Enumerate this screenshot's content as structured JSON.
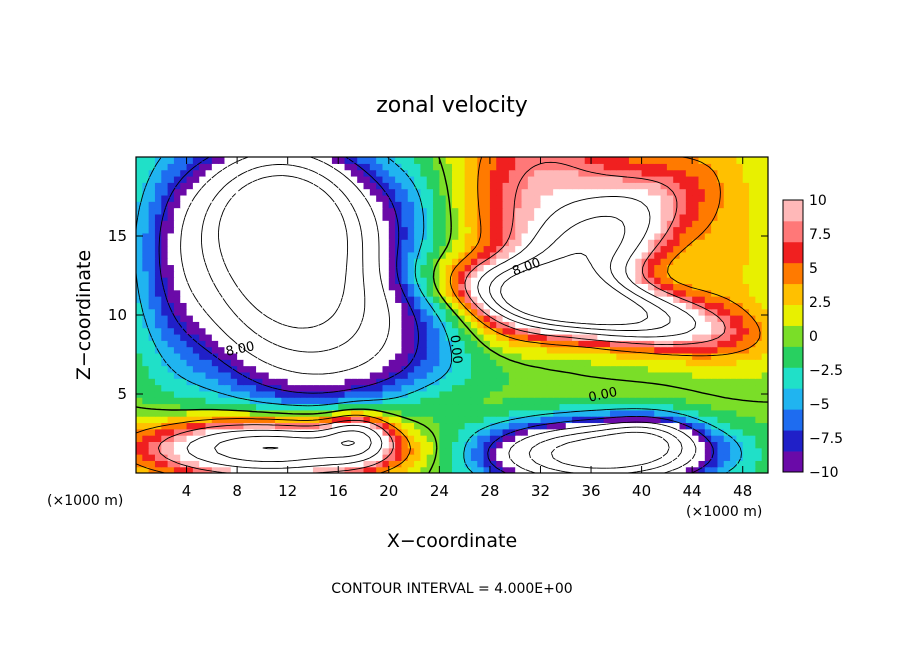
{
  "chart_data": {
    "type": "heatmap",
    "title": "zonal velocity",
    "xlabel": "X−coordinate",
    "ylabel": "Z−coordinate",
    "x_unit_left": "(×1000 m)",
    "x_unit_right": "(×1000 m)",
    "footer": "CONTOUR INTERVAL = 4.000E+00",
    "xlim": [
      0,
      50
    ],
    "ylim": [
      0,
      20
    ],
    "x_ticks": [
      4,
      8,
      12,
      16,
      20,
      24,
      28,
      32,
      36,
      40,
      44,
      48
    ],
    "y_ticks": [
      5,
      10,
      15
    ],
    "colorbar": {
      "min": -10,
      "max": 10,
      "ticks": [
        "10",
        "7.5",
        "5",
        "2.5",
        "0",
        "−2.5",
        "−5",
        "−7.5",
        "−10"
      ],
      "colors": [
        "#6a0aa8",
        "#2020c8",
        "#1e6cf0",
        "#20b4f0",
        "#20e0c8",
        "#28d060",
        "#7ade28",
        "#e8f000",
        "#ffc000",
        "#ff7a00",
        "#f02020",
        "#ff7878",
        "#ffb8b8"
      ]
    },
    "contour_interval": 4,
    "contour_labels": [
      {
        "text": "0.00",
        "x": 37,
        "y": 4.7,
        "angle": 12
      },
      {
        "text": "8.00",
        "x": 31,
        "y": 12.8,
        "angle": 20
      },
      {
        "text": "0.00",
        "x": 25,
        "y": 7.8,
        "angle": -84
      },
      {
        "text": "8.00",
        "x": 8.3,
        "y": 7.6,
        "angle": 12
      }
    ],
    "features": [
      {
        "kind": "min",
        "cx": 12.0,
        "cy": 13.0,
        "rx": 8.5,
        "ry": 7.0,
        "amp": -24,
        "rot": -15
      },
      {
        "kind": "min",
        "cx": 11.5,
        "cy": 16.5,
        "rx": 5.5,
        "ry": 3.5,
        "amp": -12,
        "rot": 0
      },
      {
        "kind": "max",
        "cx": 36.0,
        "cy": 10.5,
        "rx": 9.5,
        "ry": 1.8,
        "amp": 24,
        "rot": -8
      },
      {
        "kind": "max",
        "cx": 36.0,
        "cy": 14.0,
        "rx": 8.5,
        "ry": 3.0,
        "amp": 14,
        "rot": 28
      },
      {
        "kind": "max",
        "cx": 32.5,
        "cy": 17.5,
        "rx": 7.0,
        "ry": 6.0,
        "amp": 9,
        "rot": 0
      },
      {
        "kind": "max",
        "cx": 11.0,
        "cy": 1.6,
        "rx": 9.5,
        "ry": 1.8,
        "amp": 22,
        "rot": 0
      },
      {
        "kind": "max",
        "cx": 17.5,
        "cy": 2.4,
        "rx": 2.5,
        "ry": 1.5,
        "amp": 10,
        "rot": 0
      },
      {
        "kind": "min",
        "cx": 36.5,
        "cy": 1.2,
        "rx": 8.5,
        "ry": 2.0,
        "amp": -24,
        "rot": 0
      },
      {
        "kind": "min",
        "cx": 40.5,
        "cy": 2.2,
        "rx": 3.5,
        "ry": 1.4,
        "amp": -8,
        "rot": 0
      },
      {
        "kind": "min",
        "cx": 21.0,
        "cy": 7.5,
        "rx": 9.0,
        "ry": 4.5,
        "amp": -5,
        "rot": 0
      },
      {
        "kind": "min",
        "cx": 3.0,
        "cy": 13.0,
        "rx": 3.0,
        "ry": 8.0,
        "amp": -2.5,
        "rot": 0
      },
      {
        "kind": "min",
        "cx": 22.0,
        "cy": 17.5,
        "rx": 4.0,
        "ry": 3.0,
        "amp": -2,
        "rot": 0
      },
      {
        "kind": "max",
        "cx": 47.0,
        "cy": 14.0,
        "rx": 4.0,
        "ry": 6.0,
        "amp": 2.5,
        "rot": 0
      },
      {
        "kind": "max",
        "cx": 24.0,
        "cy": 4.5,
        "rx": 7.0,
        "ry": 1.5,
        "amp": 2.0,
        "rot": 0
      }
    ]
  }
}
